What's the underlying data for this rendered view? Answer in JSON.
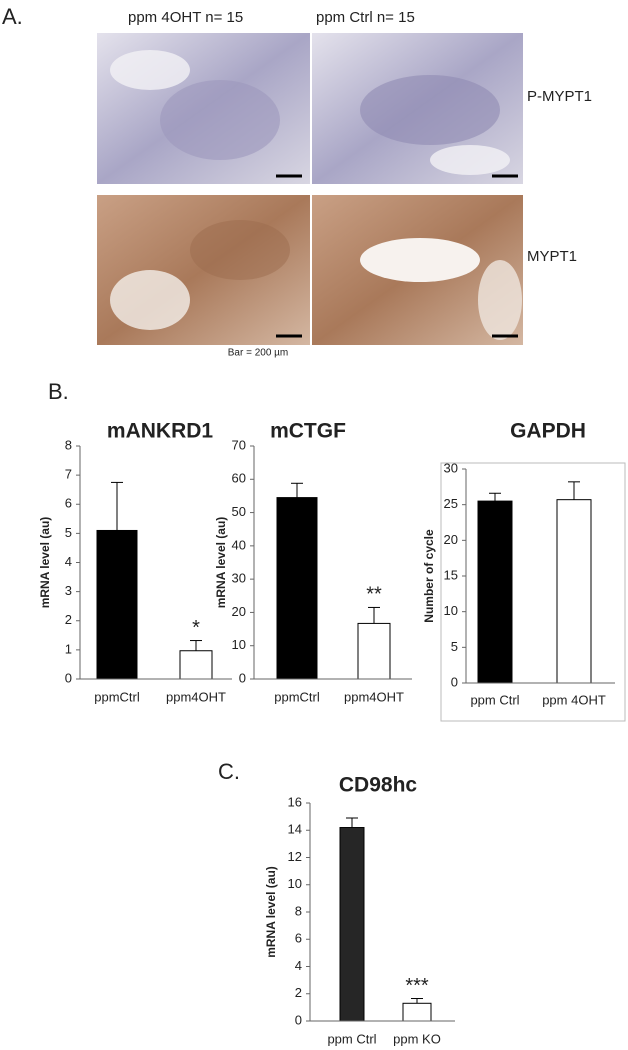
{
  "panel_a": {
    "label": "A.",
    "columns": [
      "ppm 4OHT   n= 15",
      "ppm Ctrl   n= 15"
    ],
    "rows": [
      "P-MYPT1",
      "MYPT1"
    ],
    "scale_note": "Bar = 200 µm"
  },
  "panel_b_label": "B.",
  "panel_c_label": "C.",
  "chart_data": [
    {
      "type": "bar",
      "title": "mANKRD1",
      "y_label": "mRNA level (au)",
      "categories": [
        "ppmCtrl",
        "ppm4OHT"
      ],
      "values": [
        5.1,
        0.97
      ],
      "errors": [
        1.65,
        0.35
      ],
      "colors": [
        "#000000",
        "#ffffff"
      ],
      "significance": [
        null,
        "*"
      ],
      "ylim": [
        0,
        8
      ],
      "yticks": [
        0,
        1,
        2,
        3,
        4,
        5,
        6,
        7,
        8
      ]
    },
    {
      "type": "bar",
      "title": "mCTGF",
      "y_label": "mRNA level (au)",
      "categories": [
        "ppmCtrl",
        "ppm4OHT"
      ],
      "values": [
        54.5,
        16.7
      ],
      "errors": [
        4.3,
        4.8
      ],
      "colors": [
        "#000000",
        "#ffffff"
      ],
      "significance": [
        null,
        "**"
      ],
      "ylim": [
        0,
        70
      ],
      "yticks": [
        0,
        10,
        20,
        30,
        40,
        50,
        60,
        70
      ]
    },
    {
      "type": "bar",
      "title": "GAPDH",
      "y_label": "Number of cycle",
      "categories": [
        "ppm Ctrl",
        "ppm 4OHT"
      ],
      "values": [
        25.5,
        25.7
      ],
      "errors": [
        1.1,
        2.5
      ],
      "colors": [
        "#000000",
        "#ffffff"
      ],
      "significance": [
        null,
        null
      ],
      "ylim": [
        0,
        30
      ],
      "yticks": [
        0,
        5,
        10,
        15,
        20,
        25,
        30
      ]
    },
    {
      "type": "bar",
      "title": "CD98hc",
      "y_label": "mRNA level (au)",
      "categories": [
        "ppm Ctrl",
        "ppm KO"
      ],
      "values": [
        14.2,
        1.3
      ],
      "errors": [
        0.7,
        0.35
      ],
      "colors": [
        "#262626",
        "#ffffff"
      ],
      "significance": [
        null,
        "***"
      ],
      "ylim": [
        0,
        16
      ],
      "yticks": [
        0,
        2,
        4,
        6,
        8,
        10,
        12,
        14,
        16
      ]
    }
  ]
}
